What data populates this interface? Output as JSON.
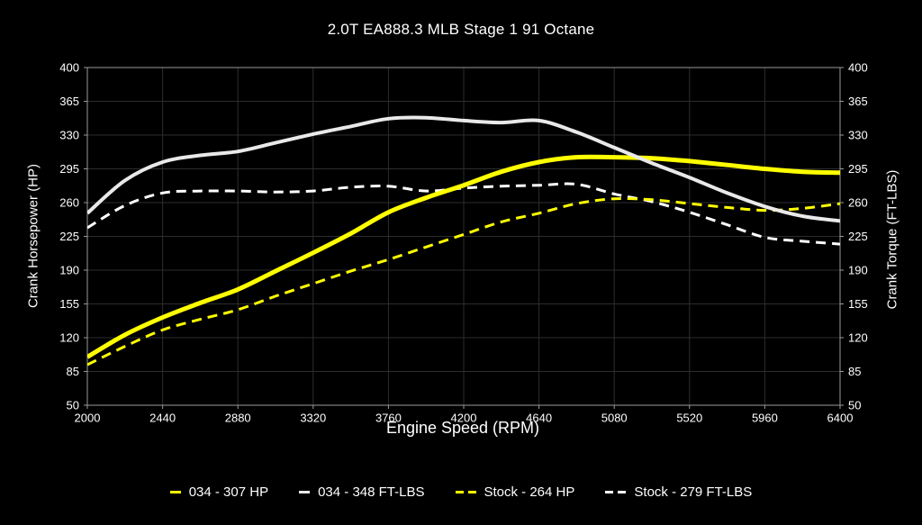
{
  "chart_data": {
    "type": "line",
    "title": "2.0T EA888.3 MLB Stage 1 91 Octane",
    "xlabel": "Engine Speed (RPM)",
    "ylabel_left": "Crank Horsepower (HP)",
    "ylabel_right": "Crank Torque (FT-LBS)",
    "xlim": [
      2000,
      6400
    ],
    "ylim": [
      50,
      400
    ],
    "x_ticks": [
      2000,
      2440,
      2880,
      3320,
      3760,
      4200,
      4640,
      5080,
      5520,
      5960,
      6400
    ],
    "y_ticks": [
      50,
      85,
      120,
      155,
      190,
      225,
      260,
      295,
      330,
      365,
      400
    ],
    "grid": true,
    "legend_position": "bottom",
    "x": [
      2000,
      2220,
      2440,
      2660,
      2880,
      3100,
      3320,
      3540,
      3760,
      3980,
      4200,
      4420,
      4640,
      4860,
      5080,
      5300,
      5520,
      5740,
      5960,
      6180,
      6400
    ],
    "series": [
      {
        "name": "034 - 307 HP",
        "color": "#ffff00",
        "style": "solid",
        "width": 5,
        "values": [
          100,
          123,
          141,
          156,
          170,
          189,
          208,
          228,
          250,
          265,
          278,
          292,
          302,
          307,
          307,
          306,
          303,
          299,
          295,
          292,
          291
        ]
      },
      {
        "name": "034 - 348 FT-LBS",
        "color": "#e9e9e9",
        "style": "solid",
        "width": 4,
        "values": [
          249,
          283,
          302,
          309,
          313,
          322,
          331,
          339,
          347,
          348,
          345,
          343,
          345,
          333,
          317,
          301,
          286,
          270,
          256,
          246,
          241
        ]
      },
      {
        "name": "Stock - 264 HP",
        "color": "#ffff00",
        "style": "dashed",
        "width": 3,
        "values": [
          92,
          111,
          128,
          139,
          149,
          163,
          176,
          189,
          201,
          214,
          227,
          240,
          249,
          259,
          264,
          263,
          259,
          255,
          252,
          254,
          259
        ]
      },
      {
        "name": "Stock - 279 FT-LBS",
        "color": "#ffffff",
        "style": "dashed",
        "width": 3,
        "values": [
          234,
          257,
          270,
          272,
          272,
          271,
          272,
          276,
          277,
          272,
          275,
          277,
          278,
          279,
          269,
          261,
          250,
          237,
          224,
          220,
          217
        ]
      }
    ]
  },
  "colors": {
    "background": "#000000",
    "text": "#ffffff",
    "gridline": "#2d2d2d",
    "axis_border": "#9a9a9a"
  }
}
